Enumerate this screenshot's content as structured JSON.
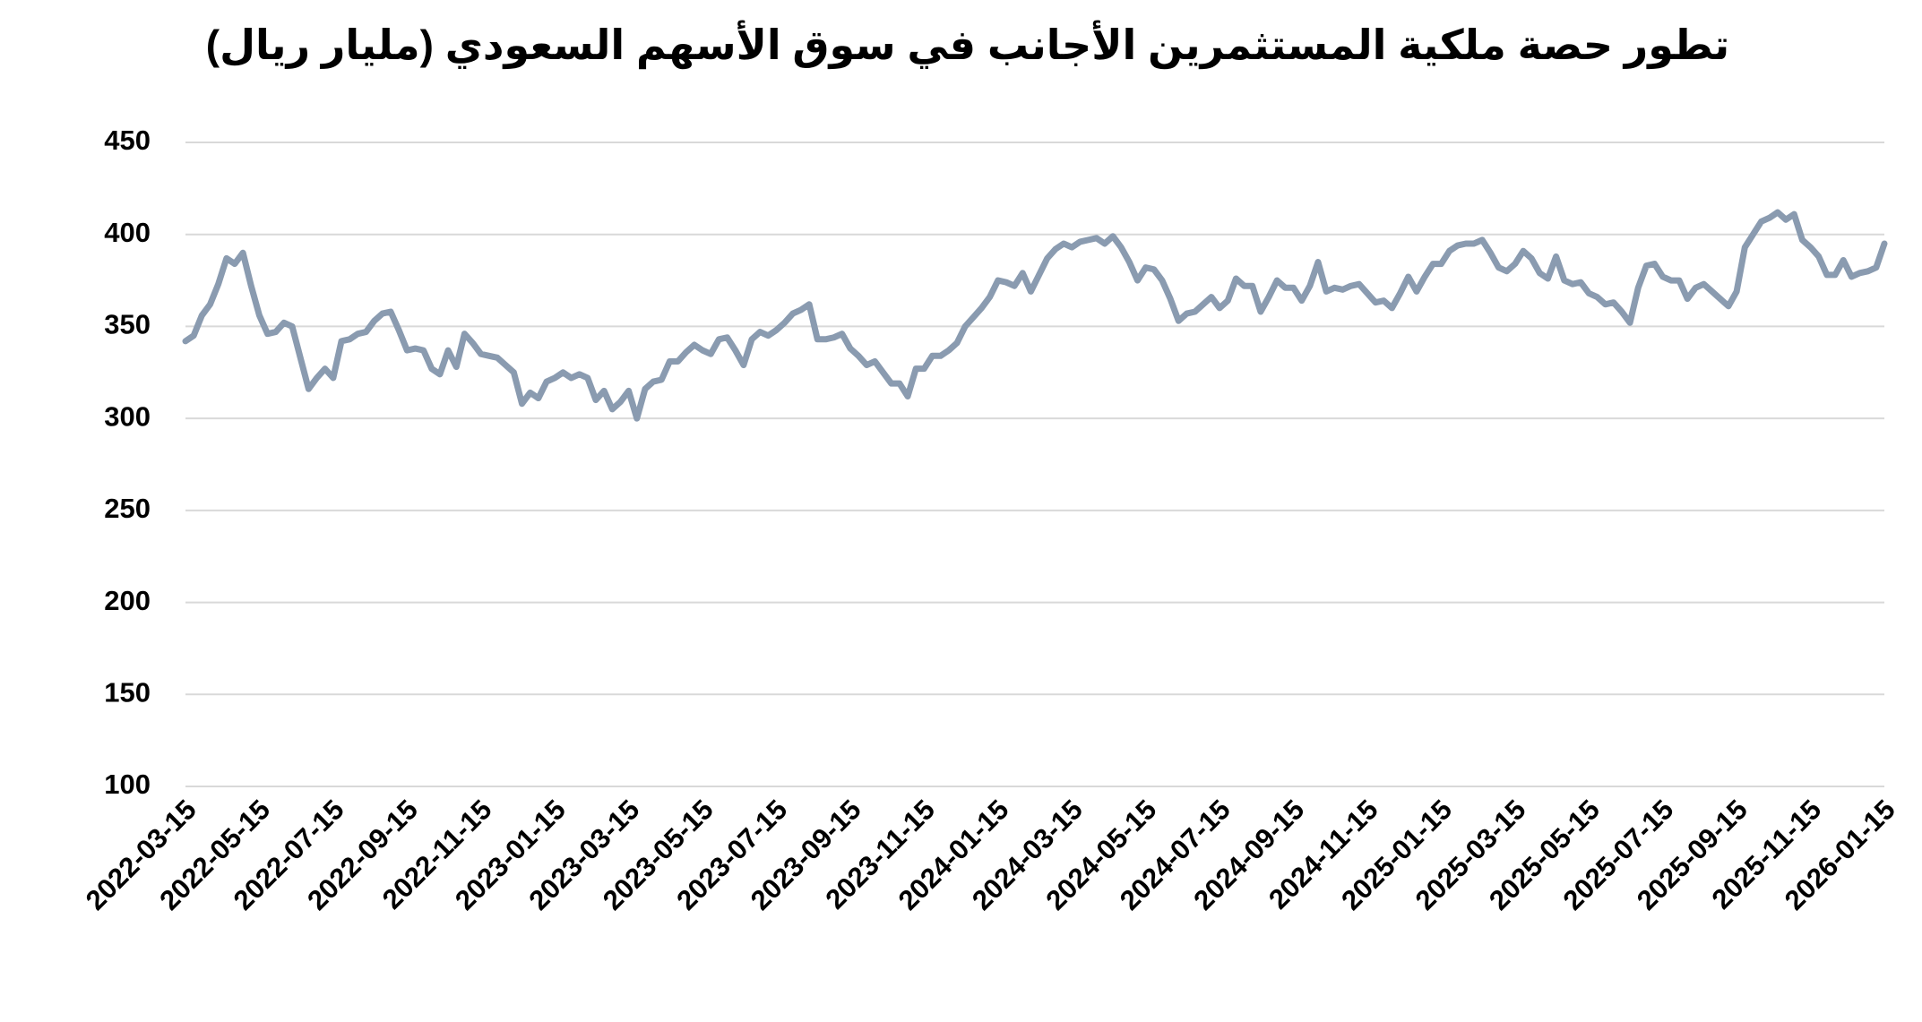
{
  "chart_data": {
    "type": "line",
    "title": "تطور حصة ملكية المستثمرين الأجانب في سوق الأسهم السعودي (مليار ريال)",
    "categories": [
      "2022-03-15",
      null,
      null,
      null,
      null,
      null,
      null,
      null,
      null,
      "2022-05-15",
      null,
      null,
      null,
      null,
      null,
      null,
      null,
      null,
      "2022-07-15",
      null,
      null,
      null,
      null,
      null,
      null,
      null,
      null,
      "2022-09-15",
      null,
      null,
      null,
      null,
      null,
      null,
      null,
      null,
      "2022-11-15",
      null,
      null,
      null,
      null,
      null,
      null,
      null,
      null,
      "2023-01-15",
      null,
      null,
      null,
      null,
      null,
      null,
      null,
      null,
      "2023-03-15",
      null,
      null,
      null,
      null,
      null,
      null,
      null,
      null,
      "2023-05-15",
      null,
      null,
      null,
      null,
      null,
      null,
      null,
      null,
      "2023-07-15",
      null,
      null,
      null,
      null,
      null,
      null,
      null,
      null,
      "2023-09-15",
      null,
      null,
      null,
      null,
      null,
      null,
      null,
      null,
      "2023-11-15",
      null,
      null,
      null,
      null,
      null,
      null,
      null,
      null,
      "2024-01-15",
      null,
      null,
      null,
      null,
      null,
      null,
      null,
      null,
      "2024-03-15",
      null,
      null,
      null,
      null,
      null,
      null,
      null,
      null,
      "2024-05-15",
      null,
      null,
      null,
      null,
      null,
      null,
      null,
      null,
      "2024-07-15",
      null,
      null,
      null,
      null,
      null,
      null,
      null,
      null,
      "2024-09-15",
      null,
      null,
      null,
      null,
      null,
      null,
      null,
      null,
      "2024-11-15",
      null,
      null,
      null,
      null,
      null,
      null,
      null,
      null,
      "2025-01-15",
      null,
      null,
      null,
      null,
      null,
      null,
      null,
      null,
      "2025-03-15",
      null,
      null,
      null,
      null,
      null,
      null,
      null,
      null,
      "2025-05-15",
      null,
      null,
      null,
      null,
      null,
      null,
      null,
      null,
      "2025-07-15",
      null,
      null,
      null,
      null,
      null,
      null,
      null,
      null,
      "2025-09-15",
      null,
      null,
      null,
      null,
      null,
      null,
      null,
      null,
      "2025-11-15",
      null,
      null,
      null,
      null,
      null,
      null,
      null,
      null,
      "2026-01-15"
    ],
    "values": [
      342,
      345,
      356,
      362,
      373,
      387,
      384,
      390,
      372,
      356,
      346,
      347,
      352,
      350,
      333,
      316,
      322,
      327,
      322,
      342,
      343,
      346,
      347,
      353,
      357,
      358,
      348,
      337,
      338,
      337,
      327,
      324,
      337,
      328,
      346,
      341,
      335,
      334,
      333,
      329,
      325,
      308,
      314,
      311,
      320,
      322,
      325,
      322,
      324,
      322,
      310,
      315,
      305,
      309,
      315,
      300,
      316,
      320,
      321,
      331,
      331,
      336,
      340,
      337,
      335,
      343,
      344,
      337,
      329,
      343,
      347,
      345,
      348,
      352,
      357,
      359,
      362,
      343,
      343,
      344,
      346,
      338,
      334,
      329,
      331,
      325,
      319,
      319,
      312,
      327,
      327,
      334,
      334,
      337,
      341,
      350,
      355,
      360,
      366,
      375,
      374,
      372,
      379,
      369,
      378,
      387,
      392,
      395,
      393,
      396,
      397,
      398,
      395,
      399,
      393,
      385,
      375,
      382,
      381,
      375,
      365,
      353,
      357,
      358,
      362,
      366,
      360,
      364,
      376,
      372,
      372,
      358,
      366,
      375,
      371,
      371,
      364,
      372,
      385,
      369,
      371,
      370,
      372,
      373,
      368,
      363,
      364,
      360,
      368,
      377,
      369,
      377,
      384,
      384,
      391,
      394,
      395,
      395,
      397,
      390,
      382,
      380,
      384,
      391,
      387,
      379,
      376,
      388,
      375,
      373,
      374,
      368,
      366,
      362,
      363,
      358,
      352,
      371,
      383,
      384,
      377,
      375,
      375,
      365,
      371,
      373,
      369,
      365,
      361,
      369,
      393,
      400,
      407,
      409,
      412,
      408,
      411,
      397,
      393,
      388,
      378,
      378,
      386,
      377,
      379,
      380,
      382,
      395
    ],
    "color": "#8a9bb0",
    "ylim": [
      100,
      450
    ],
    "yticks": [
      100,
      150,
      200,
      250,
      300,
      350,
      400,
      450
    ],
    "grid": true
  }
}
